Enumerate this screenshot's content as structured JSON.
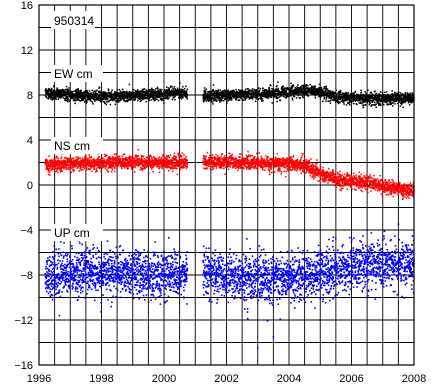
{
  "chart_data": {
    "type": "scatter",
    "station": "950314",
    "xlim": [
      1996,
      2008
    ],
    "ylim": [
      -16,
      16
    ],
    "x_ticks": [
      1996,
      1998,
      2000,
      2002,
      2004,
      2006,
      2008
    ],
    "y_ticks": [
      16,
      12,
      8,
      4,
      0,
      -4,
      -8,
      -12,
      -16
    ],
    "y_tick_labels": [
      "16",
      "12",
      "8",
      "4",
      "0",
      "−4",
      "−8",
      "−12",
      "−16"
    ],
    "grid": true,
    "series": [
      {
        "name": "EW cm",
        "color": "#000000",
        "gaps": [
          [
            2000.75,
            2001.25
          ]
        ],
        "trend": [
          [
            1996.2,
            8.2
          ],
          [
            1997.5,
            7.9
          ],
          [
            1998.5,
            7.9
          ],
          [
            2000.0,
            8.1
          ],
          [
            2000.75,
            8.1
          ],
          [
            2001.25,
            7.9
          ],
          [
            2003.0,
            8.1
          ],
          [
            2004.5,
            8.4
          ],
          [
            2005.0,
            8.3
          ],
          [
            2005.5,
            7.8
          ],
          [
            2006.5,
            7.7
          ],
          [
            2008.0,
            7.7
          ]
        ],
        "spread": 0.25
      },
      {
        "name": "NS cm",
        "color": "#ff0000",
        "gaps": [
          [
            2000.75,
            2001.25
          ]
        ],
        "trend": [
          [
            1996.2,
            1.8
          ],
          [
            1998.0,
            2.0
          ],
          [
            2000.0,
            2.0
          ],
          [
            2000.75,
            2.0
          ],
          [
            2001.25,
            2.0
          ],
          [
            2003.0,
            2.0
          ],
          [
            2004.5,
            1.8
          ],
          [
            2005.0,
            1.0
          ],
          [
            2005.5,
            0.5
          ],
          [
            2006.5,
            0.2
          ],
          [
            2007.2,
            -0.2
          ],
          [
            2008.0,
            -0.6
          ]
        ],
        "spread": 0.3
      },
      {
        "name": "UP cm",
        "color": "#0000ff",
        "gaps": [
          [
            2000.75,
            2001.25
          ]
        ],
        "trend": [
          [
            1996.2,
            -7.9
          ],
          [
            1998.0,
            -7.8
          ],
          [
            2000.0,
            -7.9
          ],
          [
            2000.75,
            -8.0
          ],
          [
            2001.25,
            -7.9
          ],
          [
            2003.0,
            -8.3
          ],
          [
            2004.5,
            -8.1
          ],
          [
            2005.5,
            -7.6
          ],
          [
            2006.5,
            -7.0
          ],
          [
            2008.0,
            -7.2
          ]
        ],
        "spread": 1.0
      }
    ],
    "outliers": [
      [
        2003.0,
        -14.5
      ],
      [
        2003.5,
        -13.5
      ],
      [
        2006.5,
        -4.0
      ]
    ]
  }
}
